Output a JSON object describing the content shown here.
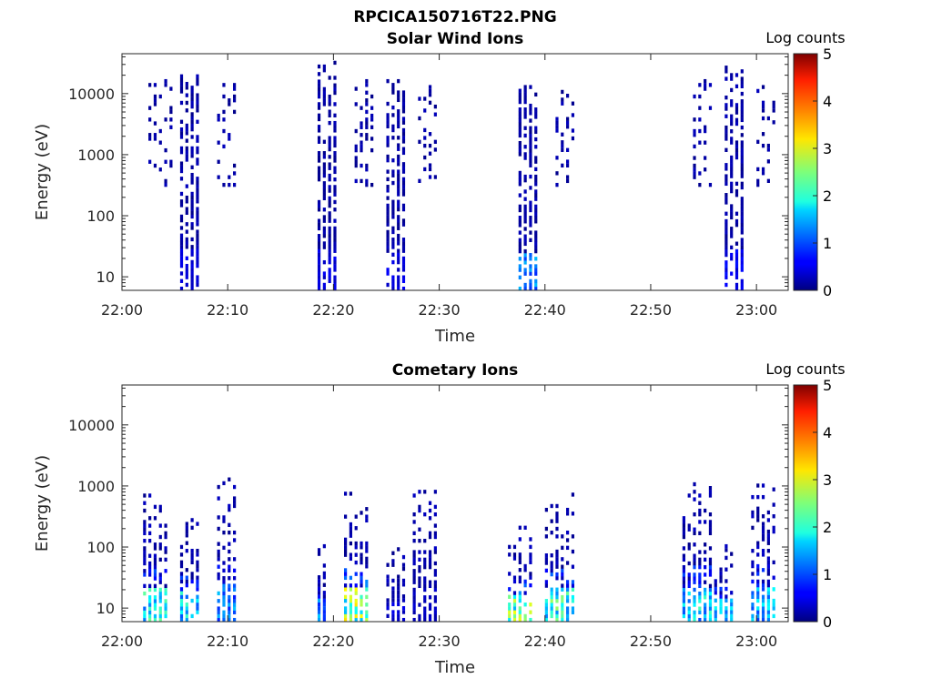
{
  "figure": {
    "title": "RPCICA150716T22.PNG",
    "colors": {
      "axis": "#262626",
      "background": "#ffffff"
    },
    "colormap": "jet"
  },
  "chart_data": [
    {
      "type": "heatmap",
      "title": "Solar Wind Ions",
      "xlabel": "Time",
      "ylabel": "Energy (eV)",
      "yscale": "log",
      "xlim": [
        "22:00",
        "23:03"
      ],
      "ylim": [
        6,
        45000
      ],
      "xticks": [
        "22:00",
        "22:10",
        "22:20",
        "22:30",
        "22:40",
        "22:50",
        "23:00"
      ],
      "yticks": [
        {
          "value": 10,
          "label": "10"
        },
        {
          "value": 100,
          "label": "100"
        },
        {
          "value": 1000,
          "label": "1000"
        },
        {
          "value": 10000,
          "label": "10000"
        }
      ],
      "colorbar": {
        "label": "Log counts",
        "range": [
          0,
          5
        ],
        "ticks": [
          "0",
          "1",
          "2",
          "3",
          "4",
          "5"
        ]
      },
      "bursts": [
        {
          "t_start": "22:02.5",
          "t_end": "22:05",
          "e_min": 300,
          "e_max": 15000,
          "peak_log_counts": 0.2,
          "low_energy_tail": false
        },
        {
          "t_start": "22:05.5",
          "t_end": "22:07.5",
          "e_min": 6,
          "e_max": 18000,
          "peak_log_counts": 0.5,
          "low_energy_tail": true
        },
        {
          "t_start": "22:09",
          "t_end": "22:11",
          "e_min": 300,
          "e_max": 15000,
          "peak_log_counts": 0.2,
          "low_energy_tail": false
        },
        {
          "t_start": "22:18.5",
          "t_end": "22:20.5",
          "e_min": 6,
          "e_max": 30000,
          "peak_log_counts": 0.5,
          "low_energy_tail": true
        },
        {
          "t_start": "22:22",
          "t_end": "22:24",
          "e_min": 300,
          "e_max": 15000,
          "peak_log_counts": 0.2,
          "low_energy_tail": false
        },
        {
          "t_start": "22:25",
          "t_end": "22:27",
          "e_min": 6,
          "e_max": 15000,
          "peak_log_counts": 0.5,
          "low_energy_tail": true
        },
        {
          "t_start": "22:28",
          "t_end": "22:30",
          "e_min": 300,
          "e_max": 12000,
          "peak_log_counts": 0.2,
          "low_energy_tail": false
        },
        {
          "t_start": "22:37.5",
          "t_end": "22:39.5",
          "e_min": 6,
          "e_max": 12000,
          "peak_log_counts": 1.3,
          "low_energy_tail": true
        },
        {
          "t_start": "22:41",
          "t_end": "22:43",
          "e_min": 300,
          "e_max": 10000,
          "peak_log_counts": 0.2,
          "low_energy_tail": false
        },
        {
          "t_start": "22:54",
          "t_end": "22:56",
          "e_min": 300,
          "e_max": 15000,
          "peak_log_counts": 0.2,
          "low_energy_tail": false
        },
        {
          "t_start": "22:57",
          "t_end": "22:59",
          "e_min": 6,
          "e_max": 25000,
          "peak_log_counts": 0.6,
          "low_energy_tail": true
        },
        {
          "t_start": "23:00",
          "t_end": "23:02",
          "e_min": 300,
          "e_max": 12000,
          "peak_log_counts": 0.2,
          "low_energy_tail": false
        }
      ]
    },
    {
      "type": "heatmap",
      "title": "Cometary Ions",
      "xlabel": "Time",
      "ylabel": "Energy (eV)",
      "yscale": "log",
      "xlim": [
        "22:00",
        "23:03"
      ],
      "ylim": [
        6,
        45000
      ],
      "xticks": [
        "22:00",
        "22:10",
        "22:20",
        "22:30",
        "22:40",
        "22:50",
        "23:00"
      ],
      "yticks": [
        {
          "value": 10,
          "label": "10"
        },
        {
          "value": 100,
          "label": "100"
        },
        {
          "value": 1000,
          "label": "1000"
        },
        {
          "value": 10000,
          "label": "10000"
        }
      ],
      "colorbar": {
        "label": "Log counts",
        "range": [
          0,
          5
        ],
        "ticks": [
          "0",
          "1",
          "2",
          "3",
          "4",
          "5"
        ]
      },
      "bursts": [
        {
          "t_start": "22:02",
          "t_end": "22:04.5",
          "e_min": 6,
          "e_max": 1000,
          "peak_log_counts": 2.2
        },
        {
          "t_start": "22:05.5",
          "t_end": "22:07.5",
          "e_min": 6,
          "e_max": 400,
          "peak_log_counts": 2.0
        },
        {
          "t_start": "22:09",
          "t_end": "22:11",
          "e_min": 6,
          "e_max": 1200,
          "peak_log_counts": 1.5
        },
        {
          "t_start": "22:18.5",
          "t_end": "22:19.5",
          "e_min": 6,
          "e_max": 150,
          "peak_log_counts": 1.5
        },
        {
          "t_start": "22:21",
          "t_end": "22:23.5",
          "e_min": 6,
          "e_max": 700,
          "peak_log_counts": 3.0
        },
        {
          "t_start": "22:25",
          "t_end": "22:27",
          "e_min": 6,
          "e_max": 100,
          "peak_log_counts": 0.5
        },
        {
          "t_start": "22:27.5",
          "t_end": "22:30",
          "e_min": 6,
          "e_max": 1000,
          "peak_log_counts": 0.4
        },
        {
          "t_start": "22:36.5",
          "t_end": "22:39",
          "e_min": 6,
          "e_max": 300,
          "peak_log_counts": 2.8
        },
        {
          "t_start": "22:40",
          "t_end": "22:43",
          "e_min": 6,
          "e_max": 900,
          "peak_log_counts": 2.4
        },
        {
          "t_start": "22:53",
          "t_end": "22:56",
          "e_min": 6,
          "e_max": 1000,
          "peak_log_counts": 2.0
        },
        {
          "t_start": "22:56",
          "t_end": "22:58",
          "e_min": 6,
          "e_max": 150,
          "peak_log_counts": 1.8
        },
        {
          "t_start": "22:59.5",
          "t_end": "23:02",
          "e_min": 6,
          "e_max": 1100,
          "peak_log_counts": 1.8
        }
      ]
    }
  ]
}
